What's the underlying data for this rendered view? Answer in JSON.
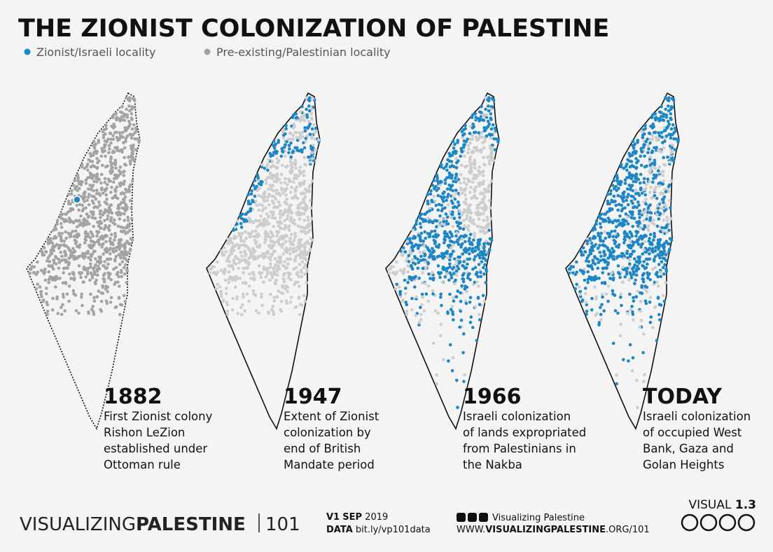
{
  "title": "THE ZIONIST COLONIZATION OF PALESTINE",
  "legend": [
    {
      "label": "Zionist/Israeli locality",
      "color": "#1c86c6"
    },
    {
      "label": "Pre-existing/Palestinian locality",
      "color": "#a3a3a3"
    }
  ],
  "panels": [
    {
      "year": "1882",
      "caption_lines": [
        "First Zionist colony",
        "Rishon LeZion",
        "established under",
        "Ottoman rule"
      ]
    },
    {
      "year": "1947",
      "caption_lines": [
        "Extent of Zionist",
        "colonization by",
        "end of British",
        "Mandate period"
      ]
    },
    {
      "year": "1966",
      "caption_lines": [
        "Israeli colonization",
        "of lands expropriated",
        "from Palestinians in",
        "the Nakba"
      ]
    },
    {
      "year": "TODAY",
      "caption_lines": [
        "Israeli colonization",
        "of occupied West",
        "Bank, Gaza and",
        "Golan Heights"
      ]
    }
  ],
  "footer": {
    "brand_light": "VISUALIZING",
    "brand_bold": "PALESTINE",
    "number": "101",
    "version": "V1",
    "month": "SEP",
    "year": "2019",
    "data_label": "DATA",
    "data_url": "bit.ly/vp101data",
    "social_name": "Visualizing Palestine",
    "web_prefix": "WWW.",
    "web_bold": "VISUALIZINGPALESTINE",
    "web_suffix": ".ORG/101",
    "visual_label": "VISUAL",
    "visual_number": "1.3"
  }
}
